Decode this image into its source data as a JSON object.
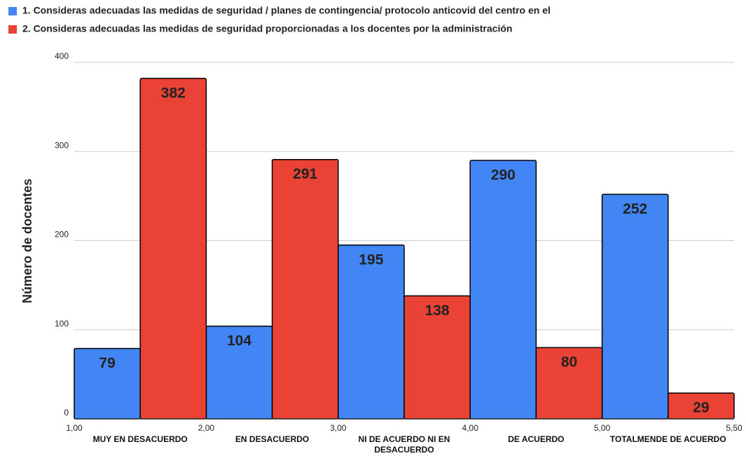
{
  "chart_data": {
    "type": "bar",
    "y_label": "Número de docentes",
    "categories": [
      "MUY EN DESACUERDO",
      "EN DESACUERDO",
      "NI DE ACUERDO  NI EN DESACUERDO",
      "DE ACUERDO",
      "TOTALMENDE DE ACUERDO"
    ],
    "xtick_labels": [
      "1,00",
      "2,00",
      "3,00",
      "4,00",
      "5,00",
      "5,50"
    ],
    "series": [
      {
        "name": "1. Consideras adecuadas las medidas de seguridad / planes de contingencia/ protocolo anticovid del centro en el",
        "color": "#4285f4",
        "values": [
          79,
          104,
          195,
          290,
          252
        ]
      },
      {
        "name": "2. Consideras adecuadas las medidas de seguridad proporcionadas a los docentes por la administración",
        "color": "#ea4335",
        "values": [
          382,
          291,
          138,
          80,
          29
        ]
      }
    ],
    "ylim": [
      0,
      400
    ],
    "yticks": [
      0,
      100,
      200,
      300,
      400
    ],
    "grid": true,
    "legend": "top"
  }
}
